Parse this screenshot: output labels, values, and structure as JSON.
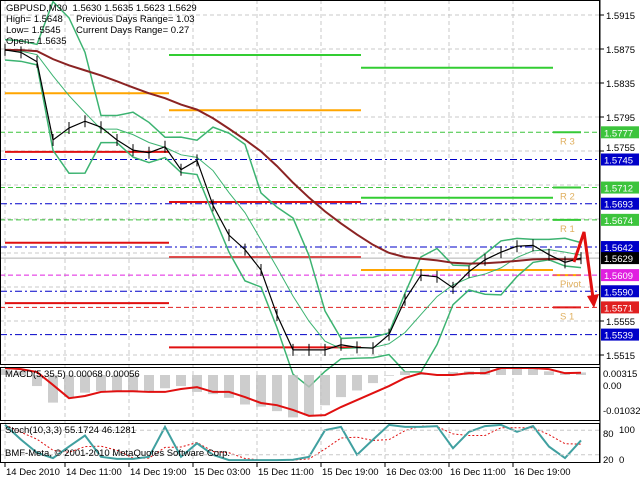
{
  "header": {
    "symbol_line": "GBPUSD,M30  1.5630 1.5635 1.5623 1.5629",
    "high": "High= 1.5648",
    "low": "Low= 1.5545",
    "open": "Open= 1.5635",
    "prev_range": "Previous Days Range= 1.03",
    "curr_range": "Current Days Range= 0.27"
  },
  "colors": {
    "pivot": "#ffa500",
    "resistance": "#32cd32",
    "support": "#e01010",
    "band": "#3cb371",
    "ma": "#8b2323",
    "blue_level": "#0000c0",
    "macd_hist": "#c0c0c0",
    "macd_signal": "#e01010",
    "stoch_main": "#40a0a0",
    "stoch_signal": "#e01010"
  },
  "chart_data": [
    {
      "type": "line",
      "title": "GBPUSD,M30",
      "ylim": [
        1.5505,
        1.5955
      ],
      "y_ticks": [
        "1.5915",
        "1.5875",
        "1.5835",
        "1.5795",
        "1.5755",
        "1.5555",
        "1.5515"
      ],
      "grid": true,
      "x_labels": [
        {
          "time": "2010-12-14 03:30",
          "label": "14 Dec 2010"
        },
        {
          "time": "2010-12-14 11:00",
          "label": "14 Dec 11:00"
        },
        {
          "time": "2010-12-14 19:00",
          "label": "14 Dec 19:00"
        },
        {
          "time": "2010-12-15 03:00",
          "label": "15 Dec 03:00"
        },
        {
          "time": "2010-12-15 11:00",
          "label": "15 Dec 11:00"
        },
        {
          "time": "2010-12-15 19:00",
          "label": "15 Dec 19:00"
        },
        {
          "time": "2010-12-16 03:00",
          "label": "16 Dec 03:00"
        },
        {
          "time": "2010-12-16 11:00",
          "label": "16 Dec 11:00"
        },
        {
          "time": "2010-12-16 19:00",
          "label": "16 Dec 19:00"
        }
      ],
      "time": [
        "2010-12-14 03:30",
        "2010-12-14 05:30",
        "2010-12-14 07:30",
        "2010-12-14 09:30",
        "2010-12-14 11:30",
        "2010-12-14 13:30",
        "2010-12-14 15:30",
        "2010-12-14 17:30",
        "2010-12-14 19:30",
        "2010-12-14 21:30",
        "2010-12-14 23:30",
        "2010-12-15 01:30",
        "2010-12-15 03:30",
        "2010-12-15 05:30",
        "2010-12-15 07:30",
        "2010-12-15 09:30",
        "2010-12-15 11:30",
        "2010-12-15 13:30",
        "2010-12-15 15:30",
        "2010-12-15 17:30",
        "2010-12-15 19:30",
        "2010-12-15 21:30",
        "2010-12-15 23:30",
        "2010-12-16 01:30",
        "2010-12-16 03:30",
        "2010-12-16 05:30",
        "2010-12-16 07:30",
        "2010-12-16 09:30",
        "2010-12-16 11:30",
        "2010-12-16 13:30",
        "2010-12-16 15:30",
        "2010-12-16 17:30",
        "2010-12-16 19:30",
        "2010-12-16 21:30",
        "2010-12-16 23:30",
        "2010-12-17 01:30",
        "2010-12-17 03:30"
      ],
      "series": [
        {
          "key": "close",
          "values": [
            1.5874,
            1.5871,
            1.586,
            1.5768,
            1.5782,
            1.579,
            1.5783,
            1.5768,
            1.5756,
            1.5753,
            1.576,
            1.5733,
            1.5744,
            1.5691,
            1.5656,
            1.5639,
            1.5615,
            1.5562,
            1.5521,
            1.5521,
            1.5521,
            1.5527,
            1.5524,
            1.5523,
            1.5539,
            1.558,
            1.5609,
            1.5607,
            1.5594,
            1.5613,
            1.5627,
            1.5636,
            1.5643,
            1.5644,
            1.5633,
            1.5624,
            1.5629
          ]
        }
      ],
      "daily_levels": [
        {
          "day": "2010-12-14",
          "start": "2010-12-14 03:30",
          "end": "2010-12-15 00:00",
          "pivot": 1.5823,
          "r1": null,
          "r2": null,
          "r3": null,
          "s1": 1.5754,
          "s2": 1.5647,
          "s3": 1.5576
        },
        {
          "day": "2010-12-15",
          "start": "2010-12-15 00:00",
          "end": "2010-12-16 00:00",
          "pivot": 1.5803,
          "r1": 1.5868,
          "r2": null,
          "r3": null,
          "s1": 1.5695,
          "s2": 1.563,
          "s3": 1.5524
        },
        {
          "day": "2010-12-16",
          "start": "2010-12-16 00:00",
          "end": "2010-12-17 00:00",
          "pivot": 1.5615,
          "r1": 1.57,
          "r2": 1.5853,
          "r3": null,
          "s1": null,
          "s2": null,
          "s3": null
        },
        {
          "day": "2010-12-17",
          "start": "2010-12-17 00:00",
          "end": "2010-12-17 03:30",
          "pivot": 1.5609,
          "r1": 1.5674,
          "r2": 1.5712,
          "r3": 1.5777,
          "s1": 1.5571,
          "s2": null,
          "s3": null
        }
      ],
      "level_labels": [
        {
          "label": "R 3",
          "price": 1.5777
        },
        {
          "label": "R 2",
          "price": 1.5712
        },
        {
          "label": "R 1",
          "price": 1.5674
        },
        {
          "label": "Pivot",
          "price": 1.5609
        },
        {
          "label": "S 1",
          "price": 1.5571
        }
      ],
      "price_tags": [
        {
          "price": 1.5777,
          "text": "1.5777",
          "color": "#3cc43c",
          "line": "dash"
        },
        {
          "price": 1.5745,
          "text": "1.5745",
          "color": "#0000c8",
          "line": "dashdot"
        },
        {
          "price": 1.5712,
          "text": "1.5712",
          "color": "#3cc43c",
          "line": "dash"
        },
        {
          "price": 1.5693,
          "text": "1.5693",
          "color": "#0000c8",
          "line": "dashdot"
        },
        {
          "price": 1.5674,
          "text": "1.5674",
          "color": "#3cc43c",
          "line": "dash"
        },
        {
          "price": 1.5642,
          "text": "1.5642",
          "color": "#0000c8",
          "line": "dashdot"
        },
        {
          "price": 1.5629,
          "text": "1.5629",
          "color": "#000000",
          "line": "solid"
        },
        {
          "price": 1.5609,
          "text": "1.5609",
          "color": "#e020e0",
          "line": "dash"
        },
        {
          "price": 1.559,
          "text": "1.5590",
          "color": "#0000c8",
          "line": "dashdot"
        },
        {
          "price": 1.5571,
          "text": "1.5571",
          "color": "#e02020",
          "line": "dash"
        },
        {
          "price": 1.5539,
          "text": "1.5539",
          "color": "#0000c8",
          "line": "dashdot"
        }
      ]
    },
    {
      "type": "bar",
      "title": "MACD(5,35,5) 0.00068 0.00056",
      "y_ticks": [
        "0.00315",
        "0.00",
        "-0.01032"
      ],
      "ylim": [
        -0.0115,
        0.0032
      ],
      "series": [
        {
          "key": "macd",
          "values": [
            0.0016,
            0.001,
            -0.003,
            -0.0075,
            -0.006,
            -0.0048,
            -0.0044,
            -0.0044,
            -0.0046,
            -0.0044,
            -0.0036,
            -0.003,
            -0.0046,
            -0.0052,
            -0.0062,
            -0.008,
            -0.0086,
            -0.0098,
            -0.0115,
            -0.011,
            -0.0082,
            -0.006,
            -0.0042,
            -0.0022,
            -0.0002,
            0.001,
            0.0002,
            0.0001,
            0.0008,
            0.001,
            0.0022,
            0.0022,
            0.0022,
            0.0018,
            0.001,
            0.0006,
            0.0007
          ]
        },
        {
          "key": "signal",
          "values": [
            0.0019,
            0.0016,
            0.0008,
            -0.0027,
            -0.0063,
            -0.0057,
            -0.0046,
            -0.0044,
            -0.0044,
            -0.0046,
            -0.0046,
            -0.0038,
            -0.0033,
            -0.0046,
            -0.0046,
            -0.006,
            -0.0076,
            -0.0082,
            -0.0095,
            -0.0111,
            -0.0109,
            -0.0087,
            -0.0068,
            -0.0049,
            -0.003,
            -0.0008,
            0.0005,
            0.0,
            0.0,
            0.0005,
            0.0005,
            0.0019,
            0.0019,
            0.0019,
            0.0016,
            0.0005,
            0.0006
          ]
        }
      ]
    },
    {
      "type": "line",
      "title": "Stoch(10,3,3) 55.1724 46.1281",
      "y_ticks": [
        "100",
        "80",
        "20",
        "0"
      ],
      "ylim": [
        0,
        100
      ],
      "series": [
        {
          "key": "k",
          "values": [
            93,
            57,
            25,
            12,
            40,
            67,
            15,
            10,
            10,
            15,
            88,
            15,
            48,
            20,
            7,
            7,
            7,
            7,
            8,
            15,
            80,
            88,
            20,
            57,
            93,
            88,
            88,
            90,
            36,
            76,
            90,
            93,
            76,
            90,
            40,
            12,
            55
          ]
        },
        {
          "key": "d",
          "values": [
            93,
            75,
            58,
            31,
            26,
            40,
            41,
            31,
            12,
            12,
            38,
            39,
            50,
            28,
            25,
            11,
            7,
            7,
            7,
            10,
            34,
            61,
            63,
            55,
            57,
            79,
            90,
            89,
            71,
            67,
            67,
            86,
            86,
            86,
            69,
            47,
            46
          ]
        }
      ]
    }
  ],
  "footer": {
    "copyright": "BMF-Meta, © 2001-2010 MetaQuotes Software Corp."
  }
}
